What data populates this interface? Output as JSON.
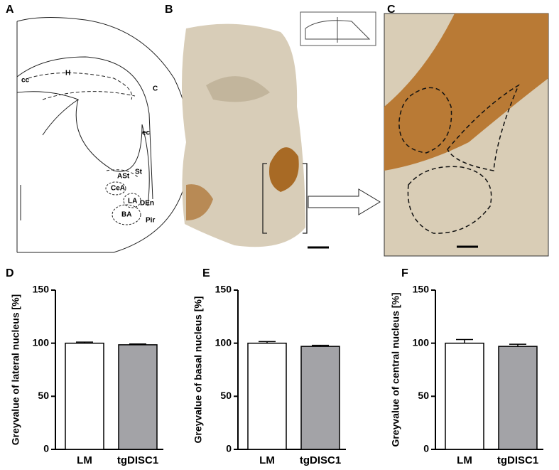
{
  "figure": {
    "panel_labels": [
      "A",
      "B",
      "C",
      "D",
      "E",
      "F"
    ],
    "diagram_labels": [
      "cc",
      "H",
      "C",
      "ec",
      "St",
      "ASt",
      "CeA",
      "LA",
      "DEn",
      "BA",
      "Pir"
    ]
  },
  "chart_data": [
    {
      "type": "bar",
      "ylabel": "Greyvalue of lateral nucleus [%]",
      "categories": [
        "LM",
        "tgDISC1"
      ],
      "values": [
        100,
        98.5
      ],
      "errors": [
        1,
        0.8
      ],
      "colors": [
        "#ffffff",
        "#a3a3a7"
      ],
      "ylim": [
        0,
        150
      ],
      "yticks": [
        0,
        50,
        100,
        150
      ]
    },
    {
      "type": "bar",
      "ylabel": "Greyvalue of basal nucleus [%]",
      "categories": [
        "LM",
        "tgDISC1"
      ],
      "values": [
        100,
        97
      ],
      "errors": [
        1.5,
        1
      ],
      "colors": [
        "#ffffff",
        "#a3a3a7"
      ],
      "ylim": [
        0,
        150
      ],
      "yticks": [
        0,
        50,
        100,
        150
      ]
    },
    {
      "type": "bar",
      "ylabel": "Greyvalue of central nucleus [%]",
      "categories": [
        "LM",
        "tgDISC1"
      ],
      "values": [
        100,
        97
      ],
      "errors": [
        3.5,
        2
      ],
      "colors": [
        "#ffffff",
        "#a3a3a7"
      ],
      "ylim": [
        0,
        150
      ],
      "yticks": [
        0,
        50,
        100,
        150
      ]
    }
  ]
}
